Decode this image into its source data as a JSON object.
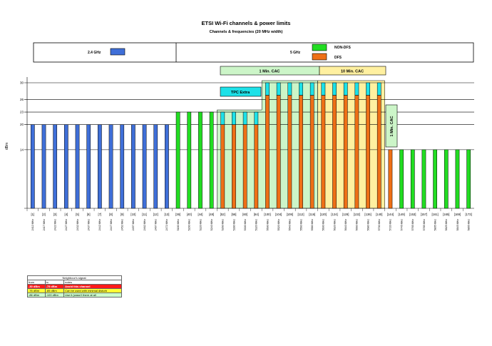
{
  "chart_data": {
    "type": "bar",
    "title": "ETSI Wi-Fi channels & power limits",
    "subtitle": "Channels & frequencies (20 MHz width)",
    "ylabel": "dBm",
    "ylim": [
      0,
      30
    ],
    "y_ticks": [
      14,
      20,
      23,
      26,
      30
    ],
    "legend": {
      "band_24": "2.4 GHz",
      "band_5": "5 GHz",
      "non_dfs": "NON-DFS",
      "dfs": "DFS"
    },
    "colors": {
      "band_24": "#3f6fd8",
      "non_dfs": "#22dd22",
      "dfs": "#ee6f16",
      "tpc_extra": "#1de1e8",
      "cac_1min": "#ccf5c8",
      "cac_10min": "#fff0a0"
    },
    "annotations": {
      "cac_1min": "1 Min. CAC",
      "cac_10min": "10 Min. CAC",
      "tpc_extra": "TPC Extra",
      "cac_1min_vertical": "1 Min. CAC"
    },
    "categories": [
      {
        "ch": "[1]",
        "freq": "2412 MHz",
        "value": 20,
        "kind": "band24"
      },
      {
        "ch": "[2]",
        "freq": "2417 MHz",
        "value": 20,
        "kind": "band24"
      },
      {
        "ch": "[3]",
        "freq": "2422 MHz",
        "value": 20,
        "kind": "band24"
      },
      {
        "ch": "[4]",
        "freq": "2427 MHz",
        "value": 20,
        "kind": "band24"
      },
      {
        "ch": "[5]",
        "freq": "2432 MHz",
        "value": 20,
        "kind": "band24"
      },
      {
        "ch": "[6]",
        "freq": "2437 MHz",
        "value": 20,
        "kind": "band24"
      },
      {
        "ch": "[7]",
        "freq": "2442 MHz",
        "value": 20,
        "kind": "band24"
      },
      {
        "ch": "[8]",
        "freq": "2447 MHz",
        "value": 20,
        "kind": "band24"
      },
      {
        "ch": "[9]",
        "freq": "2452 MHz",
        "value": 20,
        "kind": "band24"
      },
      {
        "ch": "[10]",
        "freq": "2457 MHz",
        "value": 20,
        "kind": "band24"
      },
      {
        "ch": "[11]",
        "freq": "2462 MHz",
        "value": 20,
        "kind": "band24"
      },
      {
        "ch": "[12]",
        "freq": "2467 MHz",
        "value": 20,
        "kind": "band24"
      },
      {
        "ch": "[13]",
        "freq": "2472 MHz",
        "value": 20,
        "kind": "band24"
      },
      {
        "ch": "[36]",
        "freq": "5180 MHz",
        "value": 23,
        "kind": "nondfs"
      },
      {
        "ch": "[40]",
        "freq": "5200 MHz",
        "value": 23,
        "kind": "nondfs"
      },
      {
        "ch": "[44]",
        "freq": "5220 MHz",
        "value": 23,
        "kind": "nondfs"
      },
      {
        "ch": "[48]",
        "freq": "5240 MHz",
        "value": 23,
        "kind": "nondfs"
      },
      {
        "ch": "[52]",
        "freq": "5260 MHz",
        "value": 20,
        "tpc": 23,
        "kind": "dfs"
      },
      {
        "ch": "[56]",
        "freq": "5280 MHz",
        "value": 20,
        "tpc": 23,
        "kind": "dfs"
      },
      {
        "ch": "[60]",
        "freq": "5300 MHz",
        "value": 20,
        "tpc": 23,
        "kind": "dfs"
      },
      {
        "ch": "[64]",
        "freq": "5320 MHz",
        "value": 20,
        "tpc": 23,
        "kind": "dfs"
      },
      {
        "ch": "[100]",
        "freq": "5500 MHz",
        "value": 27,
        "tpc": 30,
        "kind": "dfs"
      },
      {
        "ch": "[104]",
        "freq": "5520 MHz",
        "value": 27,
        "tpc": 30,
        "kind": "dfs"
      },
      {
        "ch": "[108]",
        "freq": "5540 MHz",
        "value": 27,
        "tpc": 30,
        "kind": "dfs"
      },
      {
        "ch": "[112]",
        "freq": "5560 MHz",
        "value": 27,
        "tpc": 30,
        "kind": "dfs"
      },
      {
        "ch": "[116]",
        "freq": "5580 MHz",
        "value": 27,
        "tpc": 30,
        "kind": "dfs"
      },
      {
        "ch": "[120]",
        "freq": "5600 MHz",
        "value": 27,
        "tpc": 30,
        "kind": "dfs"
      },
      {
        "ch": "[124]",
        "freq": "5620 MHz",
        "value": 27,
        "tpc": 30,
        "kind": "dfs"
      },
      {
        "ch": "[128]",
        "freq": "5640 MHz",
        "value": 27,
        "tpc": 30,
        "kind": "dfs"
      },
      {
        "ch": "[132]",
        "freq": "5660 MHz",
        "value": 27,
        "tpc": 30,
        "kind": "dfs"
      },
      {
        "ch": "[136]",
        "freq": "5680 MHz",
        "value": 27,
        "tpc": 30,
        "kind": "dfs"
      },
      {
        "ch": "[140]",
        "freq": "5700 MHz",
        "value": 27,
        "tpc": 30,
        "kind": "dfs"
      },
      {
        "ch": "[144]",
        "freq": "5720 MHz",
        "value": 14,
        "kind": "dfs"
      },
      {
        "ch": "[149]",
        "freq": "5745 MHz",
        "value": 14,
        "kind": "nondfs"
      },
      {
        "ch": "[153]",
        "freq": "5765 MHz",
        "value": 14,
        "kind": "nondfs"
      },
      {
        "ch": "[157]",
        "freq": "5785 MHz",
        "value": 14,
        "kind": "nondfs"
      },
      {
        "ch": "[161]",
        "freq": "5805 MHz",
        "value": 14,
        "kind": "nondfs"
      },
      {
        "ch": "[165]",
        "freq": "5825 MHz",
        "value": 14,
        "kind": "nondfs"
      },
      {
        "ch": "[169]",
        "freq": "5845 MHz",
        "value": 14,
        "kind": "nondfs"
      },
      {
        "ch": "[173]",
        "freq": "5865 MHz",
        "value": 14,
        "kind": "nondfs"
      }
    ],
    "bands": {
      "cac_1min": {
        "from": "[52]",
        "to": "[116]"
      },
      "cac_10min": {
        "from": "[120]",
        "to": "[140]"
      },
      "cac_1min_vertical": {
        "from": "[144]",
        "to": "[144]"
      }
    }
  },
  "signal_table": {
    "title": "Neighbour's signal:",
    "headers": [
      "from",
      "to",
      "notes"
    ],
    "rows": [
      {
        "from": "-30 dBm",
        "to": "-75 dBm",
        "notes": "Avoid this channel",
        "level": "red"
      },
      {
        "from": "-76 dBm",
        "to": "-85 dBm",
        "notes": "Can be used with minimal disturb",
        "level": "yellow"
      },
      {
        "from": "-86 dBm",
        "to": "-100 dBm",
        "notes": "Use it (wasn't there at all",
        "level": "green"
      }
    ]
  }
}
